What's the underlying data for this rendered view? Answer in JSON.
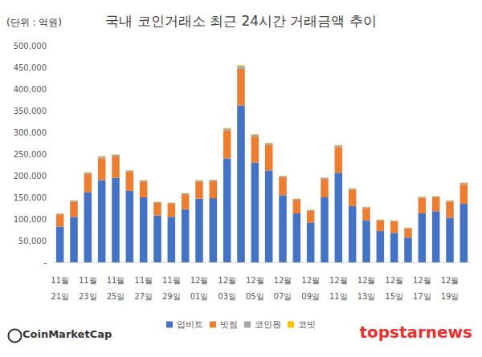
{
  "chart_data": {
    "type": "bar",
    "title": "국내 코인거래소 최근 24시간 거래금액 추이",
    "ylabel": "(단위 : 억원)",
    "annotations": [
      "CoinMarketCap",
      "topstarnews"
    ],
    "stacked": true,
    "grid": false,
    "legend": "bottom",
    "categories": [
      "11월\n21일",
      null,
      "11월\n23일",
      null,
      "11월\n25일",
      null,
      "11월\n27일",
      null,
      "11월\n29일",
      null,
      "12월\n01일",
      null,
      "12월\n03일",
      null,
      "12월\n05일",
      null,
      "12월\n07일",
      null,
      "12월\n09일",
      null,
      "12월\n11일",
      null,
      "12월\n13일",
      null,
      "12월\n15일",
      null,
      "12월\n17일",
      null,
      "12월\n19일",
      null
    ],
    "series": [
      {
        "name": "업비트",
        "color": "#4472c4",
        "values": [
          82000,
          105000,
          162000,
          190000,
          195000,
          165000,
          150000,
          108000,
          105000,
          122000,
          147000,
          148000,
          240000,
          362000,
          230000,
          212000,
          155000,
          113000,
          92000,
          150000,
          207000,
          130000,
          97000,
          72000,
          68000,
          57000,
          113000,
          118000,
          103000,
          135000
        ]
      },
      {
        "name": "빗썸",
        "color": "#ed7d31",
        "values": [
          28800,
          35300,
          42100,
          50300,
          49300,
          43900,
          36400,
          29300,
          30300,
          35000,
          39400,
          39300,
          64200,
          84400,
          60400,
          58800,
          41200,
          31200,
          26700,
          42300,
          58800,
          37700,
          28600,
          25100,
          27100,
          21500,
          36100,
          32100,
          37300,
          45500
        ]
      },
      {
        "name": "코인원",
        "color": "#a5a5a5",
        "values": [
          1700,
          2100,
          3100,
          3700,
          3700,
          3200,
          2800,
          2100,
          2100,
          2400,
          2800,
          2900,
          4600,
          6800,
          4400,
          4100,
          3000,
          2200,
          1800,
          2900,
          4100,
          2600,
          1900,
          1500,
          1500,
          1200,
          2300,
          2300,
          2100,
          2800
        ]
      },
      {
        "name": "코빗",
        "color": "#ffc000",
        "values": [
          500,
          600,
          800,
          1000,
          1000,
          900,
          800,
          600,
          600,
          600,
          800,
          800,
          1200,
          1800,
          1200,
          1100,
          800,
          600,
          500,
          800,
          1100,
          700,
          500,
          400,
          400,
          300,
          600,
          600,
          600,
          700
        ]
      }
    ],
    "ylim": [
      0,
      500000
    ],
    "yticks": [
      {
        "value": 0,
        "label": "-"
      },
      {
        "value": 50000,
        "label": "50,000"
      },
      {
        "value": 100000,
        "label": "100,000"
      },
      {
        "value": 150000,
        "label": "150,000"
      },
      {
        "value": 200000,
        "label": "200,000"
      },
      {
        "value": 250000,
        "label": "250,000"
      },
      {
        "value": 300000,
        "label": "300,000"
      },
      {
        "value": 350000,
        "label": "350,000"
      },
      {
        "value": 400000,
        "label": "400,000"
      },
      {
        "value": 450000,
        "label": "450,000"
      },
      {
        "value": 500000,
        "label": "500,000"
      }
    ]
  }
}
